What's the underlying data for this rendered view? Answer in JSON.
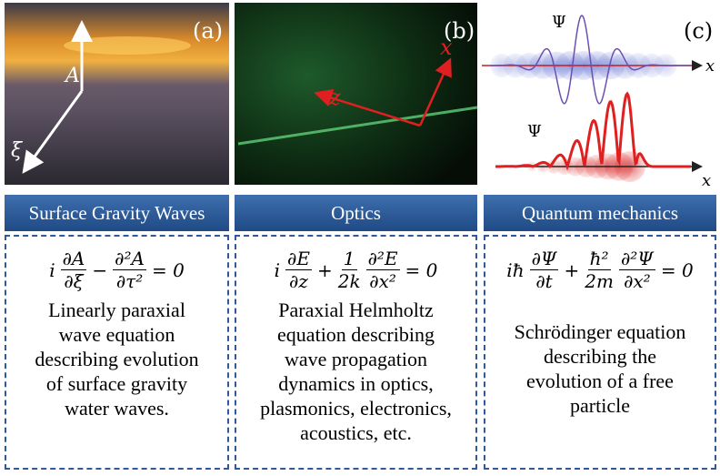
{
  "panels": [
    {
      "label": "(a)",
      "axis_labels": [
        "A",
        "ξ"
      ],
      "header": "Surface Gravity Waves",
      "equation": [
        {
          "text": "i"
        },
        {
          "num": "∂A",
          "den": "∂ξ"
        },
        {
          "text": "−"
        },
        {
          "num": "∂²A",
          "den": "∂τ²"
        },
        {
          "text": "= 0"
        }
      ],
      "description": [
        "Linearly paraxial",
        "wave equation",
        "describing evolution",
        "of  surface gravity",
        "water waves."
      ]
    },
    {
      "label": "(b)",
      "axis_labels": [
        "x",
        "z"
      ],
      "header": "Optics",
      "equation": [
        {
          "text": "i"
        },
        {
          "num": "∂E",
          "den": "∂z"
        },
        {
          "text": "+"
        },
        {
          "num": "1",
          "den": "2k"
        },
        {
          "num": "∂²E",
          "den": "∂x²"
        },
        {
          "text": "= 0"
        }
      ],
      "description": [
        "Paraxial Helmholtz",
        "equation describing",
        "wave propagation",
        "dynamics in optics,",
        "plasmonics, electronics,",
        "acoustics, etc."
      ]
    },
    {
      "label": "(c)",
      "axis_labels": [
        "Ψ",
        "x",
        "Ψ",
        "x"
      ],
      "header": "Quantum mechanics",
      "equation": [
        {
          "text": "iħ"
        },
        {
          "num": "∂Ψ",
          "den": "∂t"
        },
        {
          "text": "+"
        },
        {
          "num": "ħ²",
          "den": "2m"
        },
        {
          "num": "∂²Ψ",
          "den": "∂x²"
        },
        {
          "text": "= 0"
        }
      ],
      "description": [
        "Schrödinger equation",
        "describing the",
        "evolution of a free",
        "particle"
      ]
    }
  ]
}
